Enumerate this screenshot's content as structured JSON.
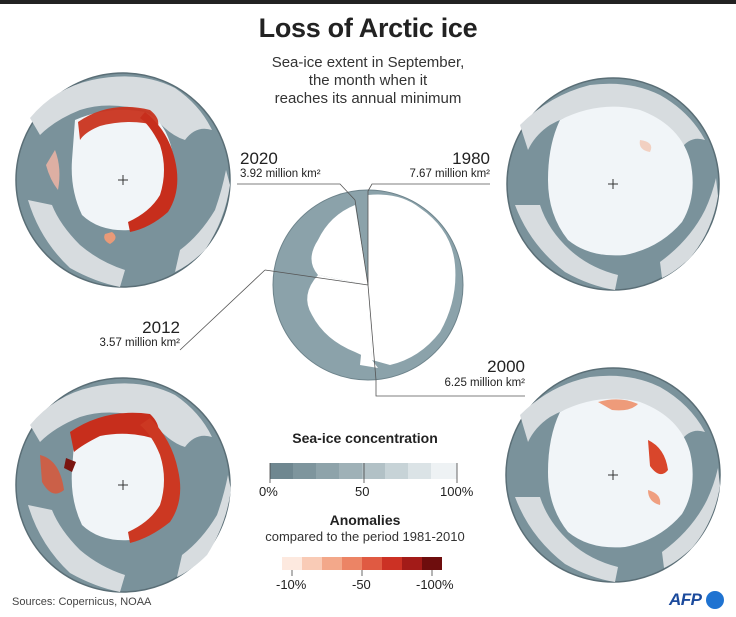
{
  "title": "Loss of Arctic ice",
  "subtitle": [
    "Sea-ice extent in September,",
    "the month when it",
    "reaches its annual minimum"
  ],
  "maps": [
    {
      "year": "2020",
      "extent": "3.92 million km²"
    },
    {
      "year": "1980",
      "extent": "7.67 million km²"
    },
    {
      "year": "2012",
      "extent": "3.57 million km²"
    },
    {
      "year": "2000",
      "extent": "6.25 million km²"
    }
  ],
  "legend": {
    "concentration": {
      "title": "Sea-ice concentration",
      "ticks": [
        "0%",
        "50",
        "100%"
      ]
    },
    "anomalies": {
      "title": "Anomalies",
      "subtitle": "compared to the period 1981-2010",
      "ticks": [
        "-10%",
        "-50",
        "-100%"
      ]
    }
  },
  "colors": {
    "ocean": "#7a929b",
    "land": "#d7dcdf",
    "ice": "#f1f5f8",
    "anomaly_strong": "#b8281f"
  },
  "source": "Sources: Copernicus, NOAA",
  "logo": "AFP"
}
